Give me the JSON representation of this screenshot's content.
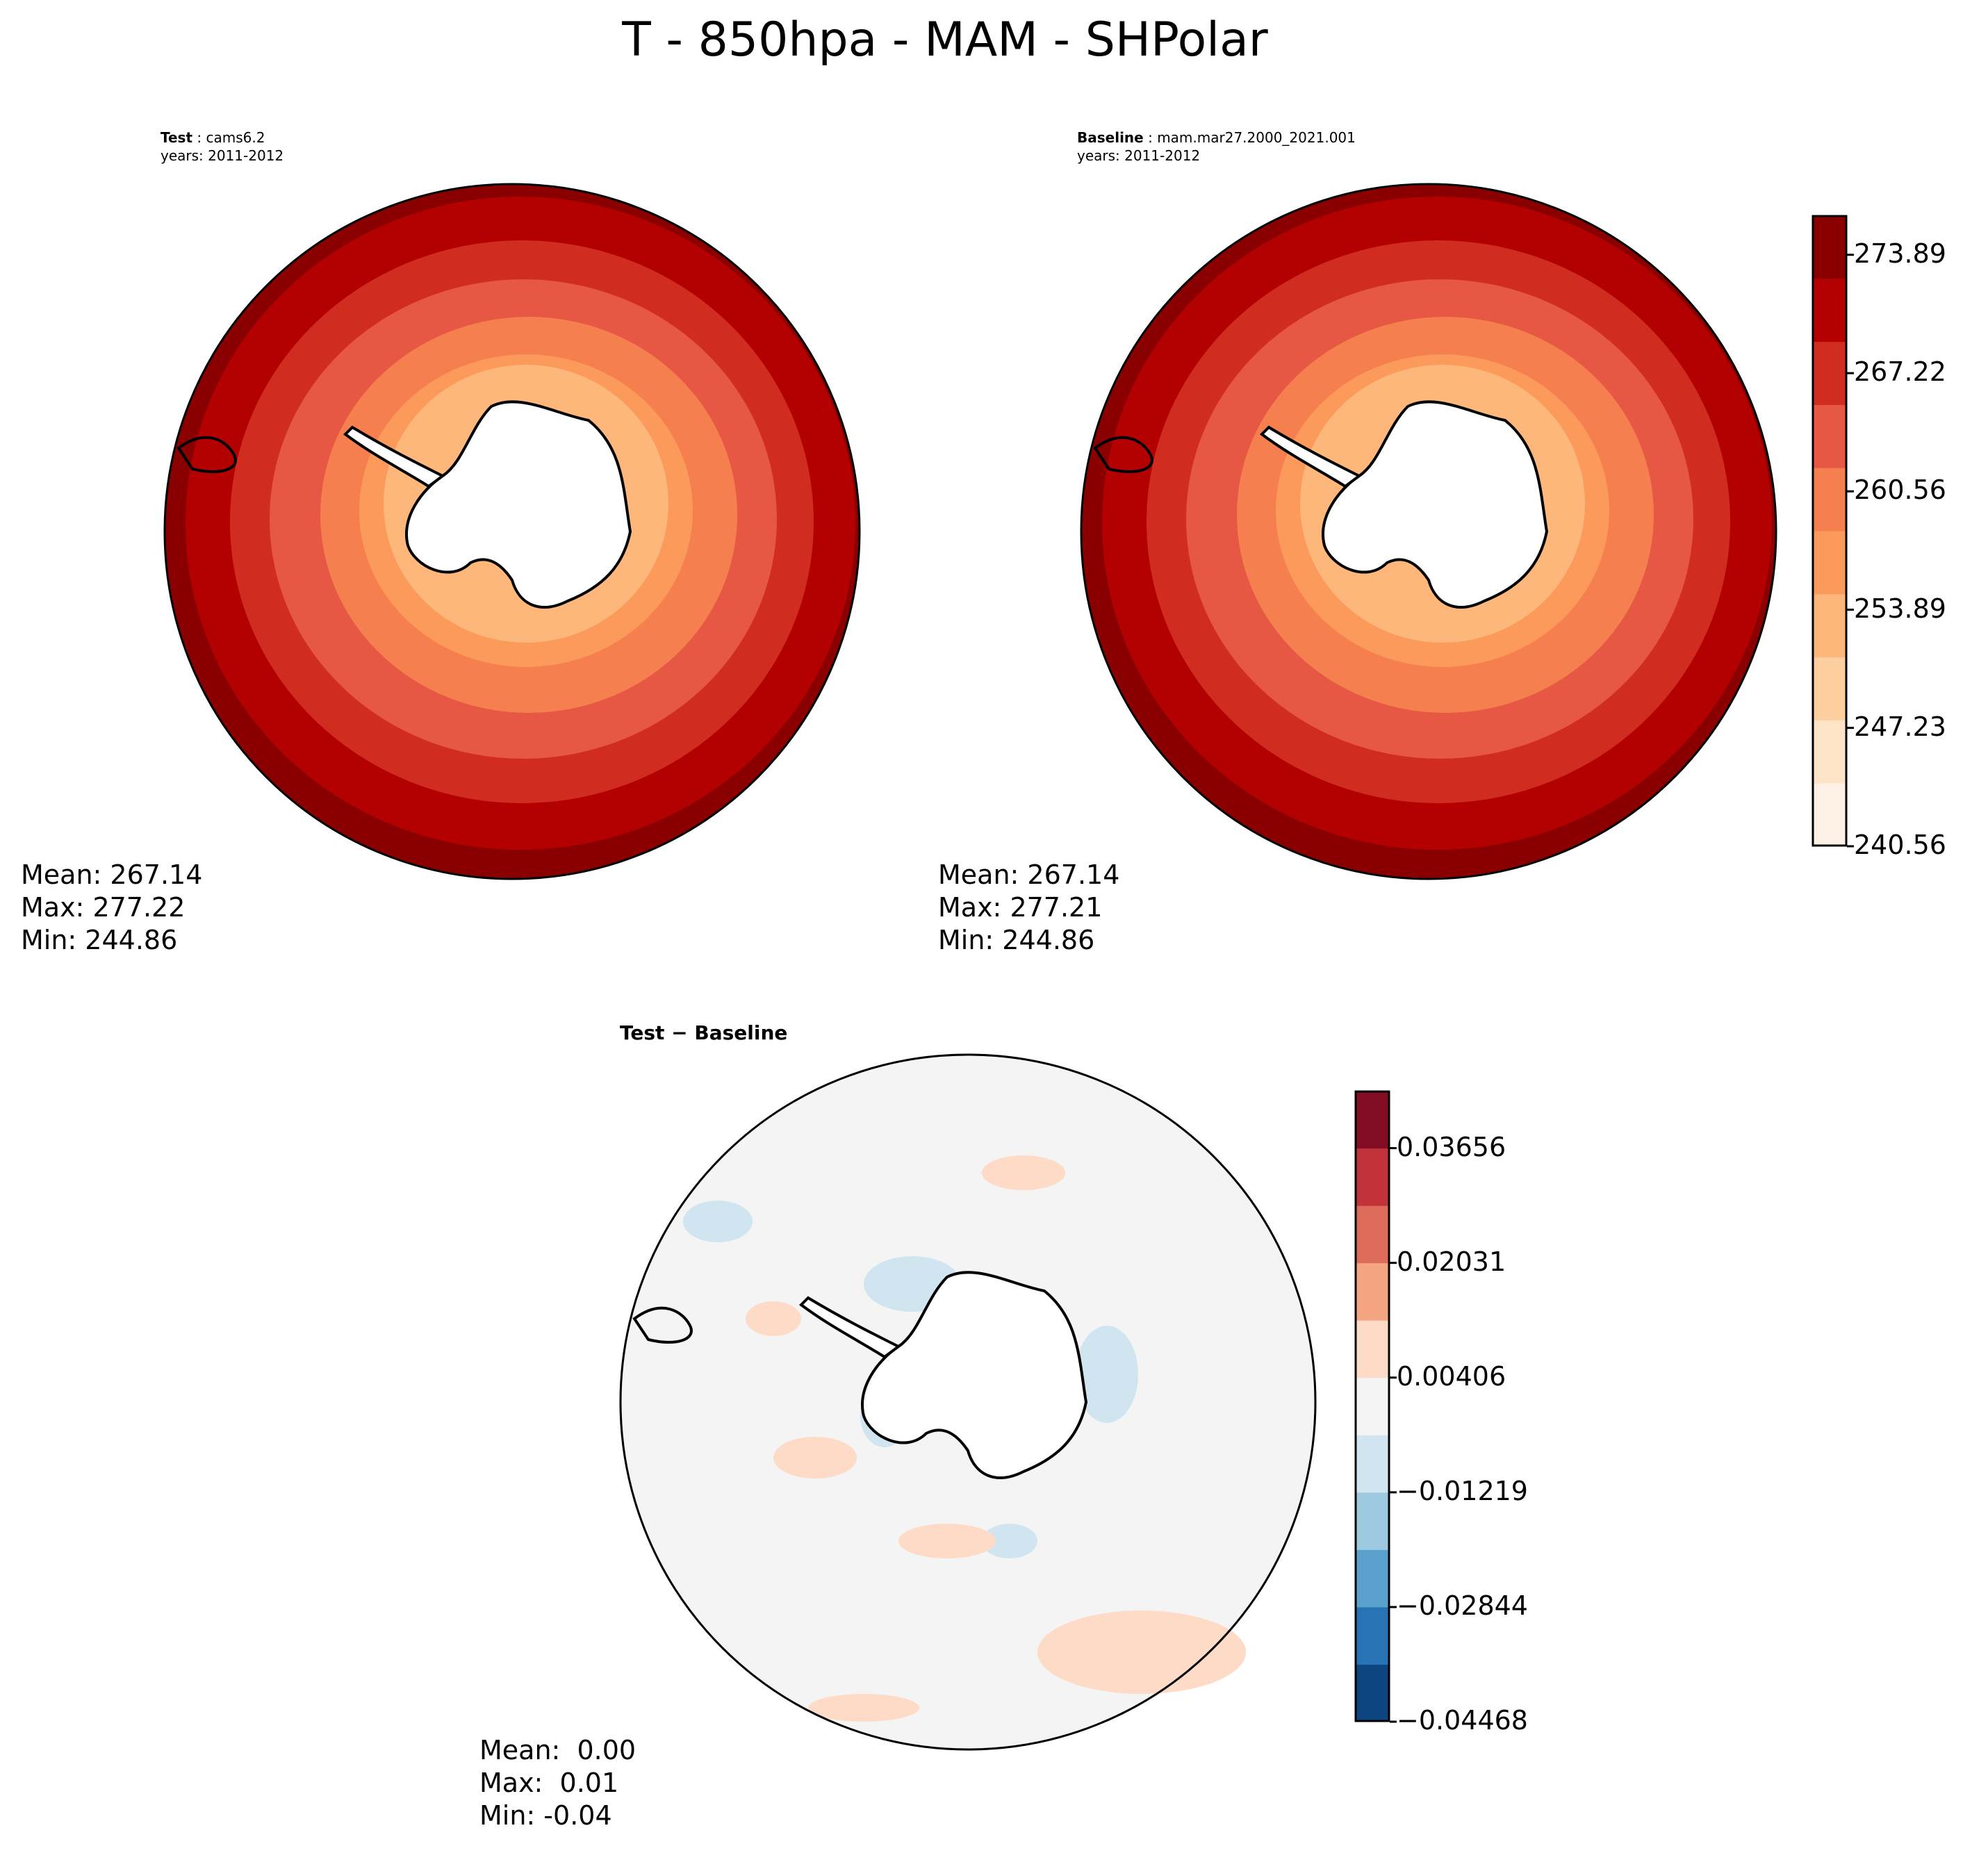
{
  "title": "T - 850hpa - MAM - SHPolar",
  "panels": [
    {
      "id": "test",
      "label_bold": "Test",
      "label_rest": " : cams6.2",
      "years": "years: 2011-2012",
      "stats": {
        "mean": "Mean: 267.14",
        "max": "Max: 277.22",
        "min": "Min: 244.86"
      }
    },
    {
      "id": "baseline",
      "label_bold": "Baseline",
      "label_rest": " : mam.mar27.2000_2021.001",
      "years": "years: 2011-2012",
      "stats": {
        "mean": "Mean: 267.14",
        "max": "Max: 277.21",
        "min": "Min: 244.86"
      }
    },
    {
      "id": "diff",
      "label_bold": "Test − Baseline",
      "stats": {
        "mean": "Mean:  0.00",
        "max": "Max:  0.01",
        "min": "Min: -0.04"
      }
    }
  ],
  "colorbar_main": {
    "ticks": [
      "273.89",
      "267.22",
      "260.56",
      "253.89",
      "247.23",
      "240.56"
    ],
    "levels": [
      240.56,
      242.78,
      245.0,
      247.23,
      249.45,
      251.67,
      253.89,
      256.12,
      258.34,
      260.56,
      262.78,
      265.0,
      267.22,
      269.45,
      271.67,
      273.89,
      276.11
    ],
    "colors": [
      "#fdf0e5",
      "#fde4c9",
      "#fdcf9f",
      "#fdb77b",
      "#fc9a5c",
      "#f67f50",
      "#e65843",
      "#d02c20",
      "#b30000",
      "#8a0000"
    ]
  },
  "colorbar_diff": {
    "ticks": [
      "0.03656",
      "0.02031",
      "0.00406",
      "−0.01219",
      "−0.02844",
      "−0.04468"
    ],
    "levels": [
      -0.04468,
      -0.03656,
      -0.02844,
      -0.02031,
      -0.01219,
      -0.00406,
      0.00406,
      0.01219,
      0.02031,
      0.02844,
      0.03656,
      0.04468
    ],
    "colors": [
      "#0d4580",
      "#2873b4",
      "#5aa1cd",
      "#9ecae1",
      "#d1e5f0",
      "#f4f4f4",
      "#fddbc7",
      "#f4a582",
      "#dd6d5a",
      "#c1323a",
      "#820d24"
    ]
  }
}
